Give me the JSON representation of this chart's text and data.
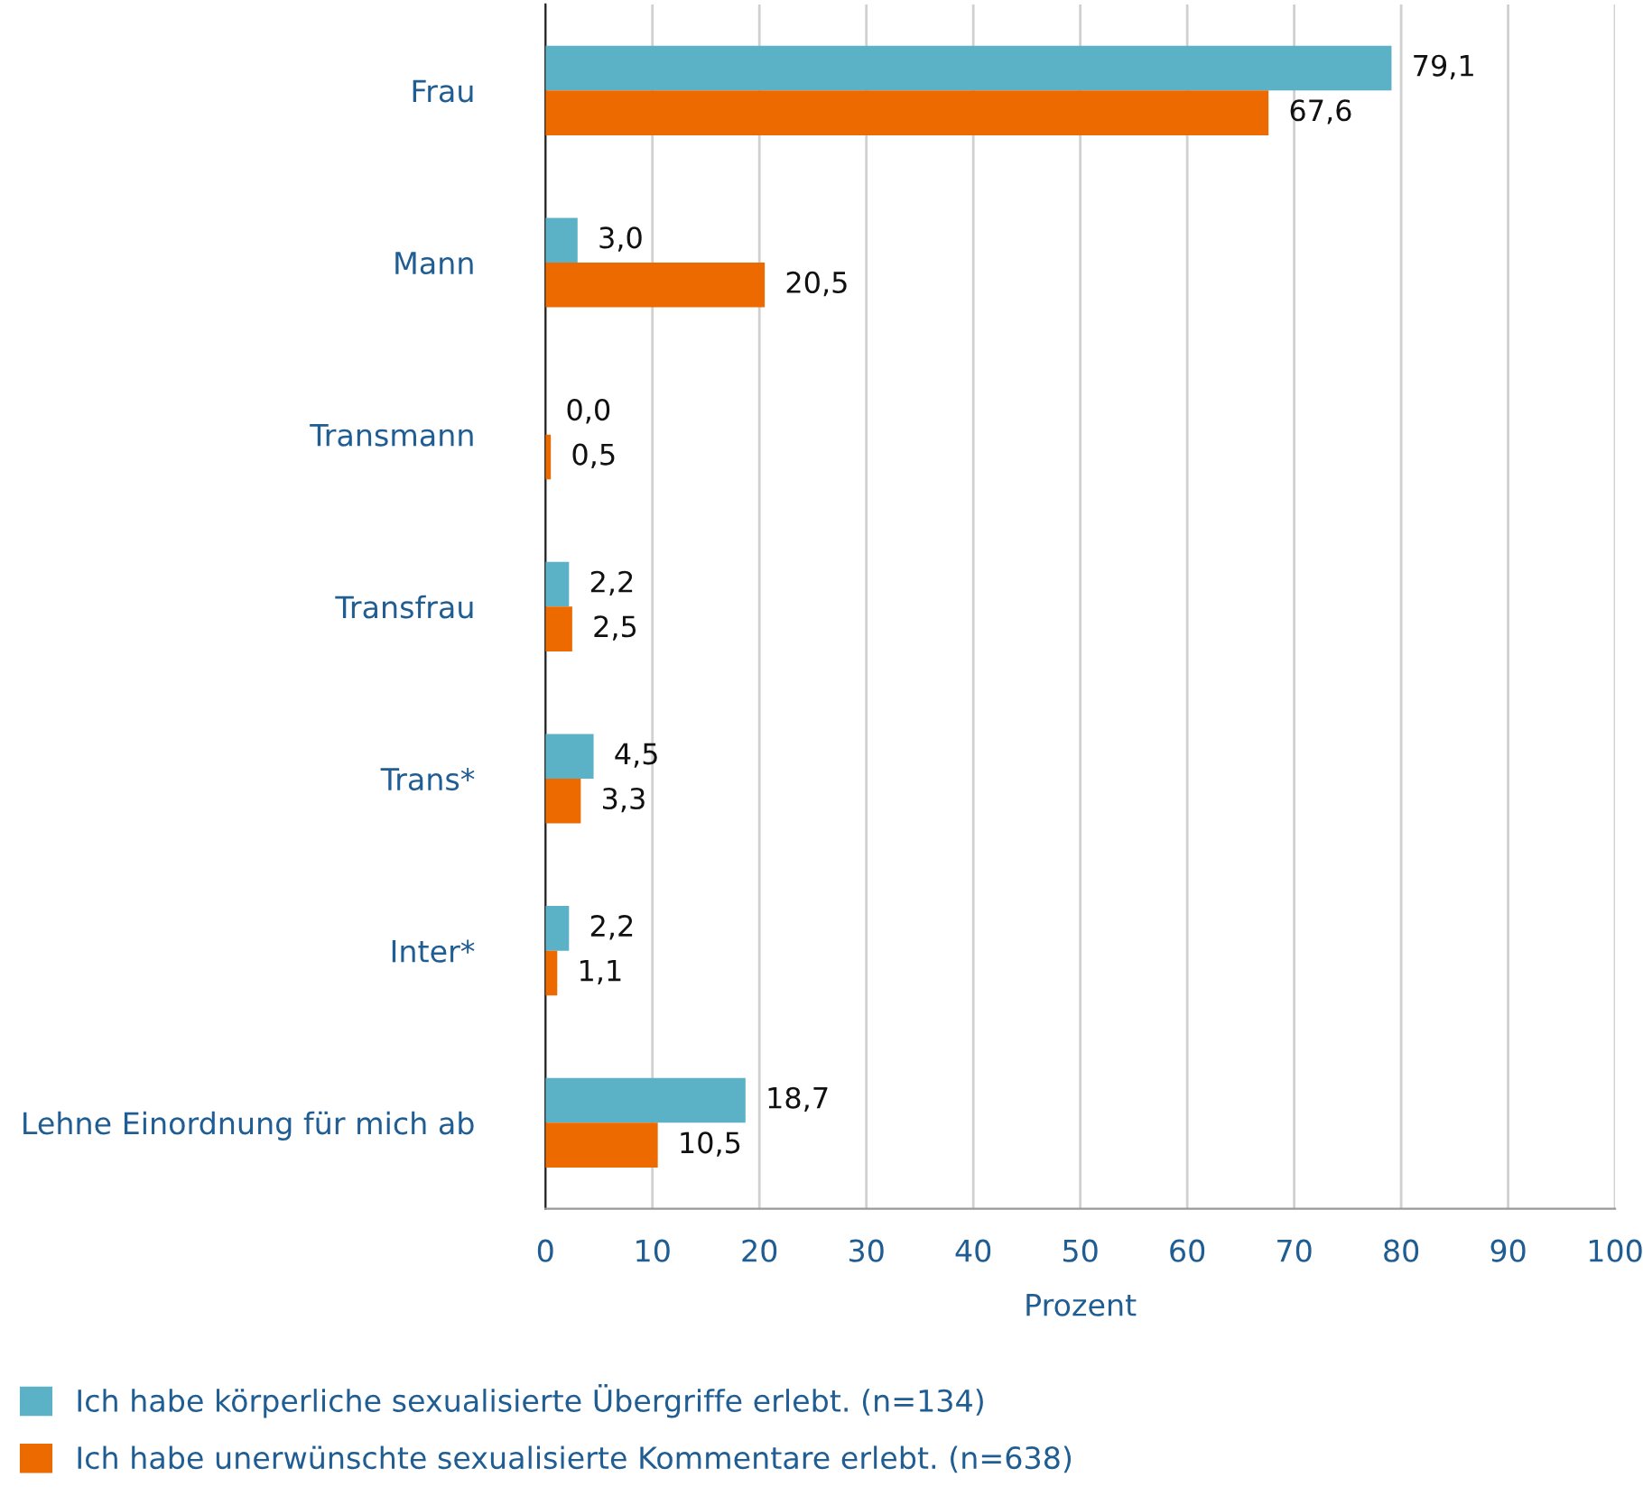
{
  "chart_data": {
    "type": "bar",
    "orientation": "horizontal",
    "xlabel": "Prozent",
    "categories": [
      "Frau",
      "Mann",
      "Transmann",
      "Transfrau",
      "Trans*",
      "Inter*",
      "Lehne Einordnung für mich ab"
    ],
    "series": [
      {
        "name": "Ich habe körperliche sexualisierte Übergriffe erlebt. (n=134)",
        "color": "#5bb1c6",
        "values": [
          79.1,
          3.0,
          0.0,
          2.2,
          4.5,
          2.2,
          18.7
        ],
        "value_labels": [
          "79,1",
          "3,0",
          "0,0",
          "2,2",
          "4,5",
          "2,2",
          "18,7"
        ]
      },
      {
        "name": "Ich habe unerwünschte sexualisierte Kommentare erlebt. (n=638)",
        "color": "#ec6a00",
        "values": [
          67.6,
          20.5,
          0.5,
          2.5,
          3.3,
          1.1,
          10.5
        ],
        "value_labels": [
          "67,6",
          "20,5",
          "0,5",
          "2,5",
          "3,3",
          "1,1",
          "10,5"
        ]
      }
    ],
    "xlim": [
      0,
      100
    ],
    "xticks": [
      0,
      10,
      20,
      30,
      40,
      50,
      60,
      70,
      80,
      90,
      100
    ],
    "grid": "x",
    "legend": "bottom"
  }
}
